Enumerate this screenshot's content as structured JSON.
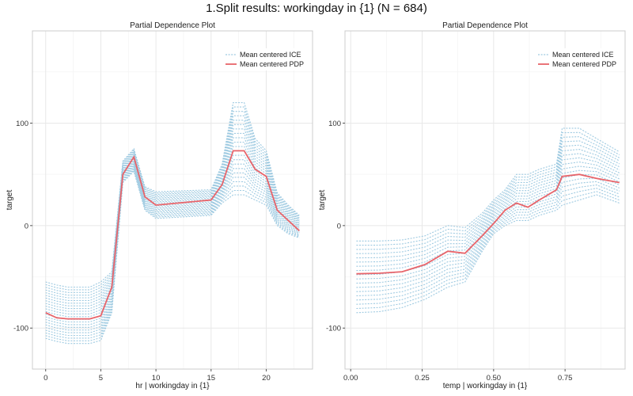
{
  "main_title": "1.Split results: workingday in {1} (N = 684)",
  "colors": {
    "ice": "#9ecae1",
    "pdp": "#e8646a",
    "grid_major": "#e8e8e8",
    "grid_minor": "#f3f3f3",
    "panel_border": "#cccccc"
  },
  "chart_data": [
    {
      "type": "line",
      "title": "Partial Dependence Plot",
      "xlabel": "hr | workingday in {1}",
      "ylabel": "target",
      "xlim": [
        -1.2,
        24.2
      ],
      "ylim": [
        -140,
        190
      ],
      "xticks": [
        0,
        5,
        10,
        15,
        20
      ],
      "xtick_labels": [
        "0",
        "5",
        "10",
        "15",
        "20"
      ],
      "yticks": [
        -100,
        0,
        100
      ],
      "ytick_labels": [
        "-100",
        "0",
        "100"
      ],
      "legend": {
        "position": "top-right",
        "entries": [
          "Mean centered ICE",
          "Mean centered PDP"
        ]
      },
      "x": [
        0,
        1,
        2,
        3,
        4,
        5,
        6,
        7,
        8,
        9,
        10,
        15,
        16,
        17,
        18,
        19,
        20,
        21,
        22,
        23
      ],
      "pdp": [
        -85,
        -90,
        -91,
        -91,
        -91,
        -88,
        -60,
        50,
        67,
        28,
        20,
        25,
        40,
        73,
        73,
        55,
        48,
        15,
        5,
        -5
      ],
      "ice_lower": [
        -110,
        -113,
        -115,
        -115,
        -115,
        -112,
        -85,
        42,
        53,
        15,
        7,
        10,
        22,
        30,
        30,
        25,
        20,
        0,
        -8,
        -12
      ],
      "ice_upper": [
        -55,
        -58,
        -60,
        -60,
        -60,
        -55,
        -45,
        63,
        75,
        38,
        33,
        35,
        60,
        120,
        120,
        85,
        73,
        32,
        20,
        10
      ],
      "ice_count": 22,
      "grid": true
    },
    {
      "type": "line",
      "title": "Partial Dependence Plot",
      "xlabel": "temp | workingday in {1}",
      "ylabel": "target",
      "xlim": [
        -0.02,
        0.96
      ],
      "ylim": [
        -140,
        190
      ],
      "xticks": [
        0.0,
        0.25,
        0.5,
        0.75
      ],
      "xtick_labels": [
        "0.00",
        "0.25",
        "0.50",
        "0.75"
      ],
      "yticks": [
        -100,
        0,
        100
      ],
      "ytick_labels": [
        "-100",
        "0",
        "100"
      ],
      "legend": {
        "position": "top-right",
        "entries": [
          "Mean centered ICE",
          "Mean centered PDP"
        ]
      },
      "x": [
        0.02,
        0.1,
        0.18,
        0.26,
        0.34,
        0.4,
        0.46,
        0.5,
        0.54,
        0.58,
        0.62,
        0.66,
        0.72,
        0.74,
        0.8,
        0.86,
        0.94
      ],
      "pdp": [
        -47,
        -46.5,
        -45,
        -38,
        -25,
        -27,
        -10,
        2,
        15,
        22,
        18,
        25,
        35,
        48,
        50,
        46,
        42
      ],
      "ice_lower": [
        -85,
        -84,
        -80,
        -72,
        -60,
        -55,
        -25,
        -8,
        0,
        5,
        5,
        10,
        15,
        20,
        25,
        30,
        22
      ],
      "ice_upper": [
        -15,
        -15,
        -14,
        -10,
        0,
        -2,
        12,
        25,
        35,
        50,
        50,
        55,
        60,
        95,
        95,
        85,
        72
      ],
      "ice_count": 18,
      "grid": true
    }
  ]
}
